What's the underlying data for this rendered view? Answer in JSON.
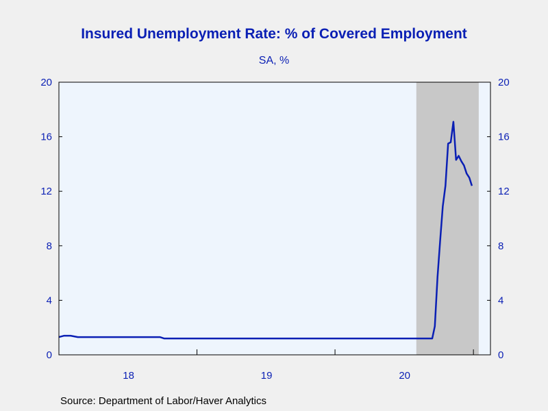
{
  "colors": {
    "line": "#0a1fb4",
    "plot_background": "#eef5fd",
    "recession_band": "#c8c8c8",
    "text": "#0a1fb4"
  },
  "chart_data": {
    "type": "line",
    "title": "Insured Unemployment Rate: % of Covered Employment",
    "subtitle": "SA, %",
    "source": "Source:  Department of Labor/Haver Analytics",
    "xlabel": "",
    "ylabel": "",
    "ylim": [
      0,
      20
    ],
    "yticks": [
      "0",
      "4",
      "8",
      "12",
      "16",
      "20"
    ],
    "yticks_right": [
      "0",
      "4",
      "8",
      "12",
      "16",
      "20"
    ],
    "xlim": [
      "2017-07-01",
      "2020-08-15"
    ],
    "xticks": [
      {
        "label": "18",
        "date": "2018-01-01"
      },
      {
        "label": "19",
        "date": "2019-01-01"
      },
      {
        "label": "20",
        "date": "2020-01-01"
      }
    ],
    "shaded_region": {
      "start": "2020-02-01",
      "end": "2020-07-15"
    },
    "grid": false,
    "series": [
      {
        "points": [
          {
            "date": "2017-07-01",
            "value": 1.3
          },
          {
            "date": "2017-07-15",
            "value": 1.4
          },
          {
            "date": "2017-08-01",
            "value": 1.4
          },
          {
            "date": "2017-08-20",
            "value": 1.3
          },
          {
            "date": "2018-03-25",
            "value": 1.3
          },
          {
            "date": "2018-04-05",
            "value": 1.2
          },
          {
            "date": "2020-03-14",
            "value": 1.2
          },
          {
            "date": "2020-03-21",
            "value": 2.1
          },
          {
            "date": "2020-03-28",
            "value": 5.7
          },
          {
            "date": "2020-04-04",
            "value": 8.4
          },
          {
            "date": "2020-04-11",
            "value": 10.9
          },
          {
            "date": "2020-04-18",
            "value": 12.4
          },
          {
            "date": "2020-04-25",
            "value": 15.5
          },
          {
            "date": "2020-05-02",
            "value": 15.6
          },
          {
            "date": "2020-05-09",
            "value": 17.1
          },
          {
            "date": "2020-05-16",
            "value": 14.3
          },
          {
            "date": "2020-05-23",
            "value": 14.6
          },
          {
            "date": "2020-05-30",
            "value": 14.2
          },
          {
            "date": "2020-06-06",
            "value": 13.9
          },
          {
            "date": "2020-06-13",
            "value": 13.3
          },
          {
            "date": "2020-06-20",
            "value": 13.0
          },
          {
            "date": "2020-06-27",
            "value": 12.4
          }
        ]
      }
    ]
  }
}
